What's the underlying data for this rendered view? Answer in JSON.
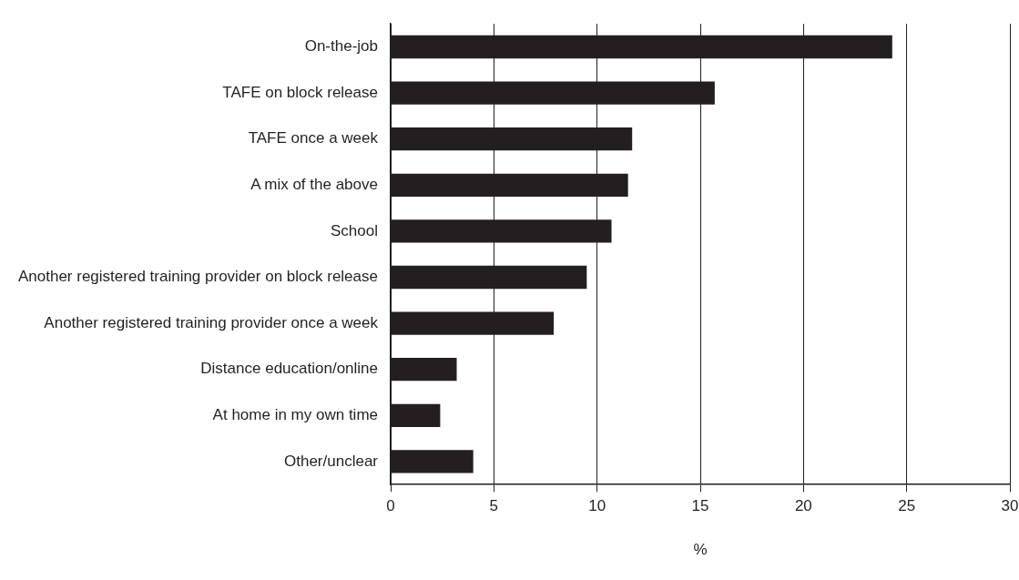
{
  "chart_data": {
    "type": "bar",
    "orientation": "horizontal",
    "xlabel": "%",
    "categories": [
      "On-the-job",
      "TAFE on block release",
      "TAFE once a week",
      "A mix of the above",
      "School",
      "Another registered training provider on block release",
      "Another registered training provider once a week",
      "Distance education/online",
      "At home in my own time",
      "Other/unclear"
    ],
    "values": [
      24.3,
      15.7,
      11.7,
      11.5,
      10.7,
      9.5,
      7.9,
      3.2,
      2.4,
      4.0
    ],
    "color": "#231f20",
    "xlim": [
      0,
      30
    ],
    "xticks": [
      0,
      5,
      10,
      15,
      20,
      25,
      30
    ],
    "grid": "x",
    "legend": false
  }
}
